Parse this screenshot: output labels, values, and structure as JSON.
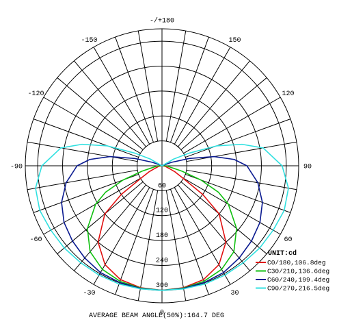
{
  "chart_data": {
    "type": "polar",
    "unit": "UNIT:cd",
    "angle_labels": [
      {
        "angle": 180,
        "text": "-/+180"
      },
      {
        "angle": 150,
        "text": "150"
      },
      {
        "angle": -150,
        "text": "-150"
      },
      {
        "angle": 120,
        "text": "120"
      },
      {
        "angle": -120,
        "text": "-120"
      },
      {
        "angle": 90,
        "text": "90"
      },
      {
        "angle": -90,
        "text": "-90"
      },
      {
        "angle": 60,
        "text": "60"
      },
      {
        "angle": -60,
        "text": "-60"
      },
      {
        "angle": 30,
        "text": "30"
      },
      {
        "angle": -30,
        "text": "-30"
      },
      {
        "angle": 0,
        "text": "0"
      }
    ],
    "radial_ticks": [
      {
        "value": 60,
        "text": "60"
      },
      {
        "value": 120,
        "text": "120"
      },
      {
        "value": 180,
        "text": "180"
      },
      {
        "value": 240,
        "text": "240"
      },
      {
        "value": 300,
        "text": "300"
      }
    ],
    "r_max": 330,
    "angle_step": 10,
    "series": [
      {
        "name": "C0/180,106.8deg",
        "color": "#e01010",
        "points": [
          [
            0,
            300
          ],
          [
            10,
            298
          ],
          [
            20,
            292
          ],
          [
            30,
            275
          ],
          [
            40,
            240
          ],
          [
            50,
            180
          ],
          [
            55,
            120
          ],
          [
            60,
            55
          ],
          [
            65,
            35
          ],
          [
            70,
            18
          ],
          [
            80,
            8
          ],
          [
            90,
            2
          ]
        ]
      },
      {
        "name": "C30/210,136.6deg",
        "color": "#10c010",
        "points": [
          [
            0,
            300
          ],
          [
            10,
            299
          ],
          [
            20,
            296
          ],
          [
            30,
            288
          ],
          [
            40,
            270
          ],
          [
            50,
            235
          ],
          [
            60,
            185
          ],
          [
            65,
            150
          ],
          [
            70,
            100
          ],
          [
            75,
            50
          ],
          [
            80,
            22
          ],
          [
            90,
            10
          ]
        ]
      },
      {
        "name": "C60/240,199.4deg",
        "color": "#0a1a90",
        "points": [
          [
            0,
            300
          ],
          [
            10,
            300
          ],
          [
            20,
            299
          ],
          [
            30,
            297
          ],
          [
            40,
            290
          ],
          [
            50,
            282
          ],
          [
            60,
            273
          ],
          [
            70,
            258
          ],
          [
            80,
            235
          ],
          [
            90,
            205
          ],
          [
            95,
            175
          ],
          [
            100,
            128
          ],
          [
            105,
            68
          ],
          [
            110,
            24
          ]
        ]
      },
      {
        "name": "C90/270,216.5deg",
        "color": "#30e0e0",
        "points": [
          [
            0,
            300
          ],
          [
            10,
            301
          ],
          [
            20,
            303
          ],
          [
            30,
            304
          ],
          [
            40,
            305
          ],
          [
            50,
            308
          ],
          [
            60,
            310
          ],
          [
            70,
            314
          ],
          [
            80,
            310
          ],
          [
            90,
            290
          ],
          [
            100,
            248
          ],
          [
            105,
            200
          ],
          [
            110,
            140
          ],
          [
            115,
            72
          ],
          [
            120,
            32
          ]
        ]
      }
    ],
    "footer": "AVERAGE BEAM ANGLE(50%):164.7 DEG"
  }
}
